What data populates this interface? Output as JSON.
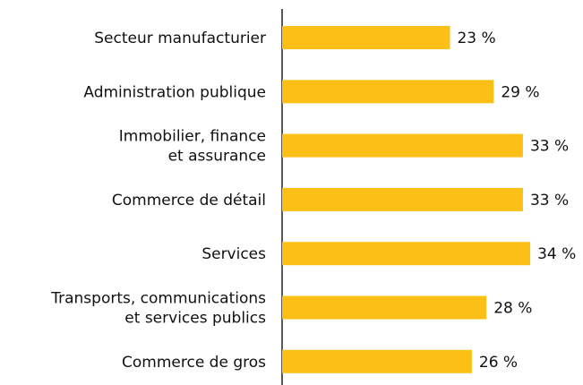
{
  "chart_data": {
    "type": "barh",
    "categories": [
      "Secteur manufacturier",
      "Administration publique",
      "Immobilier, finance\net assurance",
      "Commerce de détail",
      "Services",
      "Transports, communications\net services publics",
      "Commerce de gros"
    ],
    "values": [
      23,
      29,
      33,
      33,
      34,
      28,
      26
    ],
    "value_labels": [
      "23 %",
      "29 %",
      "33 %",
      "33 %",
      "34 %",
      "28 %",
      "26 %"
    ],
    "color": "#fbbf16"
  }
}
